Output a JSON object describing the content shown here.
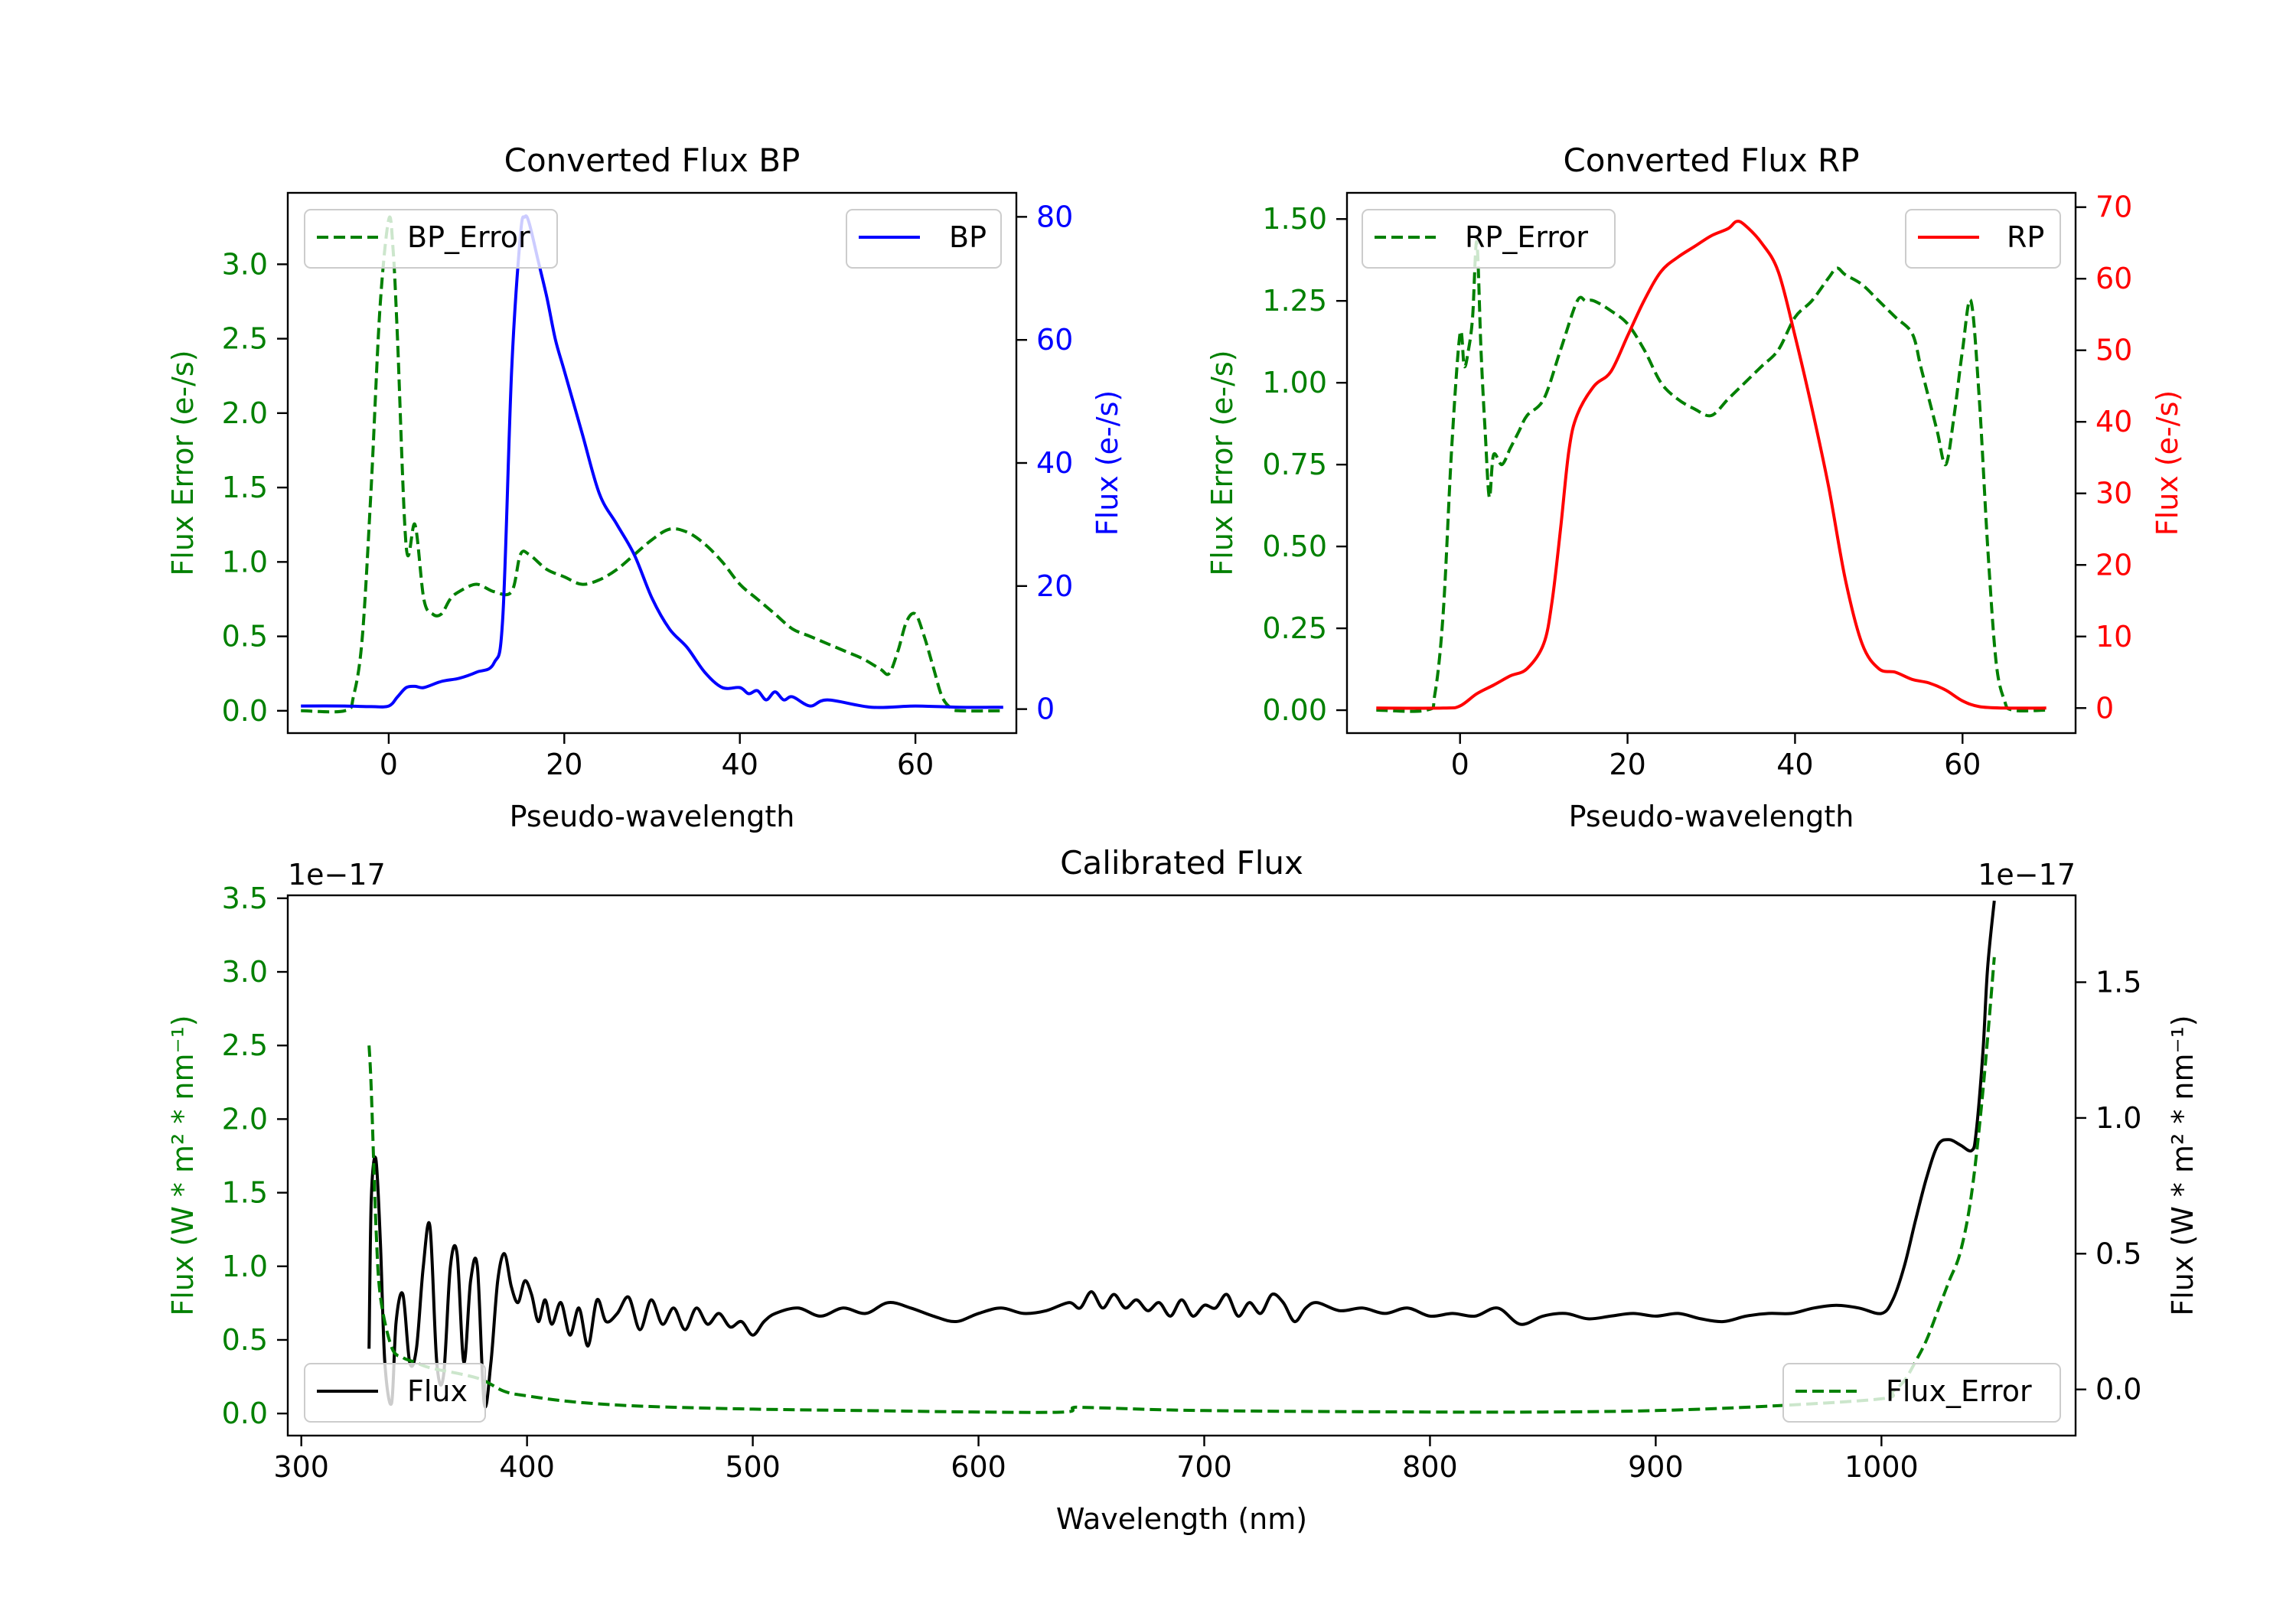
{
  "chart_data": [
    {
      "type": "line",
      "title": "Converted Flux BP",
      "xlabel": "Pseudo-wavelength",
      "ylabel_left": "Flux Error (e-/s)",
      "ylabel_right": "Flux (e-/s)",
      "xlim": [
        -11.5,
        71.5
      ],
      "ylim_left": [
        -0.15,
        3.48
      ],
      "ylim_right": [
        -3.9,
        83.9
      ],
      "xticks": [
        0,
        20,
        40,
        60
      ],
      "yticks_left": [
        0.0,
        0.5,
        1.0,
        1.5,
        2.0,
        2.5,
        3.0
      ],
      "yticks_left_labels": [
        "0.0",
        "0.5",
        "1.0",
        "1.5",
        "2.0",
        "2.5",
        "3.0"
      ],
      "yticks_right": [
        0,
        20,
        40,
        60,
        80
      ],
      "yticks_right_labels": [
        "0",
        "20",
        "40",
        "60",
        "80"
      ],
      "left_axis_color": "#008000",
      "right_axis_color": "#0000ff",
      "series": [
        {
          "name": "BP_Error",
          "axis": "left",
          "color": "#008000",
          "dashed": true,
          "x": [
            -10,
            -5,
            -4,
            -3,
            -2,
            -1,
            0,
            0.5,
            1,
            2,
            3,
            4,
            5,
            6,
            7,
            8,
            10,
            12,
            14,
            15,
            16,
            18,
            20,
            22,
            24,
            26,
            28,
            30,
            32,
            34,
            36,
            38,
            40,
            42,
            44,
            46,
            48,
            50,
            52,
            54,
            56,
            57,
            58,
            59,
            60,
            61,
            62,
            63,
            64,
            65,
            70
          ],
          "values": [
            0,
            0,
            0.1,
            0.5,
            1.5,
            2.7,
            3.3,
            3.1,
            2.5,
            1.1,
            1.25,
            0.75,
            0.65,
            0.65,
            0.75,
            0.8,
            0.85,
            0.8,
            0.8,
            1.05,
            1.05,
            0.95,
            0.9,
            0.85,
            0.88,
            0.95,
            1.05,
            1.15,
            1.22,
            1.2,
            1.12,
            1.0,
            0.85,
            0.75,
            0.65,
            0.55,
            0.5,
            0.45,
            0.4,
            0.35,
            0.28,
            0.25,
            0.4,
            0.6,
            0.65,
            0.5,
            0.3,
            0.1,
            0.02,
            0,
            0
          ]
        },
        {
          "name": "BP",
          "axis": "right",
          "color": "#0000ff",
          "dashed": false,
          "x": [
            -10,
            -5,
            -2,
            0,
            1,
            2,
            3,
            4,
            6,
            8,
            10,
            12,
            13,
            14,
            15,
            15.5,
            16,
            17,
            18,
            19,
            20,
            22,
            24,
            26,
            28,
            30,
            32,
            34,
            36,
            38,
            40,
            41,
            42,
            43,
            44,
            45,
            46,
            48,
            50,
            55,
            60,
            65,
            70
          ],
          "values": [
            0.5,
            0.5,
            0.4,
            0.5,
            2,
            3.5,
            3.7,
            3.5,
            4.5,
            5,
            6,
            7.5,
            15,
            55,
            77,
            80,
            79,
            73,
            67,
            60,
            55,
            45,
            35,
            30,
            25,
            18,
            13,
            10,
            6,
            3.5,
            3.5,
            2.5,
            3,
            1.5,
            2.8,
            1.5,
            2,
            0.5,
            1.5,
            0.3,
            0.5,
            0.3,
            0.3
          ]
        }
      ]
    },
    {
      "type": "line",
      "title": "Converted Flux RP",
      "xlabel": "Pseudo-wavelength",
      "ylabel_left": "Flux Error (e-/s)",
      "ylabel_right": "Flux (e-/s)",
      "xlim": [
        -13.5,
        73.5
      ],
      "ylim_left": [
        -0.07,
        1.58
      ],
      "ylim_right": [
        -3.5,
        72
      ],
      "xticks": [
        0,
        20,
        40,
        60
      ],
      "yticks_left": [
        0.0,
        0.25,
        0.5,
        0.75,
        1.0,
        1.25,
        1.5
      ],
      "yticks_left_labels": [
        "0.00",
        "0.25",
        "0.50",
        "0.75",
        "1.00",
        "1.25",
        "1.50"
      ],
      "yticks_right": [
        0,
        10,
        20,
        30,
        40,
        50,
        60,
        70
      ],
      "yticks_right_labels": [
        "0",
        "10",
        "20",
        "30",
        "40",
        "50",
        "60",
        "70"
      ],
      "left_axis_color": "#008000",
      "right_axis_color": "#ff0000",
      "series": [
        {
          "name": "RP_Error",
          "axis": "left",
          "color": "#008000",
          "dashed": true,
          "x": [
            -10,
            -4,
            -3,
            -2,
            -1,
            0,
            0.5,
            1,
            1.5,
            2,
            2.5,
            3,
            3.5,
            4,
            5,
            6,
            7,
            8,
            10,
            12,
            14,
            15,
            16,
            18,
            20,
            22,
            24,
            26,
            28,
            30,
            32,
            34,
            36,
            38,
            40,
            42,
            44,
            45,
            46,
            48,
            50,
            52,
            54,
            55,
            56,
            57,
            58,
            59,
            60,
            61,
            62,
            63,
            64,
            65,
            66,
            70
          ],
          "values": [
            0,
            0,
            0.05,
            0.3,
            0.8,
            1.15,
            1.05,
            1.1,
            1.2,
            1.43,
            1.1,
            0.85,
            0.65,
            0.78,
            0.75,
            0.8,
            0.85,
            0.9,
            0.95,
            1.1,
            1.25,
            1.25,
            1.25,
            1.22,
            1.18,
            1.1,
            1.0,
            0.95,
            0.92,
            0.9,
            0.95,
            1.0,
            1.05,
            1.1,
            1.2,
            1.25,
            1.32,
            1.35,
            1.33,
            1.3,
            1.25,
            1.2,
            1.15,
            1.05,
            0.95,
            0.85,
            0.75,
            0.9,
            1.1,
            1.25,
            0.95,
            0.5,
            0.15,
            0.03,
            0,
            0
          ]
        },
        {
          "name": "RP",
          "axis": "right",
          "color": "#ff0000",
          "dashed": false,
          "x": [
            -10,
            -2,
            0,
            2,
            4,
            6,
            8,
            10,
            11,
            12,
            13,
            14,
            16,
            18,
            20,
            22,
            24,
            26,
            28,
            30,
            32,
            33,
            34,
            36,
            38,
            40,
            42,
            44,
            46,
            48,
            50,
            52,
            54,
            56,
            58,
            60,
            62,
            65,
            70
          ],
          "values": [
            0,
            0,
            0.3,
            2,
            3.2,
            4.5,
            5.5,
            9,
            15,
            25,
            36,
            41,
            45,
            47,
            52,
            57,
            61,
            63,
            64.5,
            66,
            67,
            68,
            67.5,
            65,
            61,
            52,
            42,
            31,
            18,
            9,
            5.5,
            5,
            4,
            3.5,
            2.5,
            1,
            0.2,
            0,
            0
          ]
        }
      ]
    },
    {
      "type": "line",
      "title": "Calibrated Flux",
      "xlabel": "Wavelength (nm)",
      "ylabel_left": "Flux (W * m² * nm⁻¹)",
      "ylabel_right": "Flux (W * m² * nm⁻¹)",
      "offset_left": "1e−17",
      "offset_right": "1e−17",
      "xlim": [
        294,
        1086
      ],
      "ylim_left": [
        -0.15,
        3.52
      ],
      "ylim_right": [
        -0.17,
        1.82
      ],
      "xticks": [
        300,
        400,
        500,
        600,
        700,
        800,
        900,
        1000
      ],
      "yticks_left": [
        0.0,
        0.5,
        1.0,
        1.5,
        2.0,
        2.5,
        3.0,
        3.5
      ],
      "yticks_left_labels": [
        "0.0",
        "0.5",
        "1.0",
        "1.5",
        "2.0",
        "2.5",
        "3.0",
        "3.5"
      ],
      "yticks_right": [
        0.0,
        0.5,
        1.0,
        1.5
      ],
      "yticks_right_labels": [
        "0.0",
        "0.5",
        "1.0",
        "1.5"
      ],
      "left_axis_color": "#008000",
      "right_axis_color": "#000000",
      "series": [
        {
          "name": "Flux",
          "axis": "right",
          "color": "#000000",
          "dashed": false,
          "x": [
            330,
            331,
            333,
            335,
            337,
            340,
            342,
            345,
            348,
            351,
            354,
            357,
            360,
            363,
            366,
            369,
            372,
            375,
            378,
            381,
            384,
            387,
            390,
            393,
            396,
            399,
            402,
            405,
            408,
            411,
            415,
            419,
            423,
            427,
            431,
            435,
            440,
            445,
            450,
            455,
            460,
            465,
            470,
            475,
            480,
            485,
            490,
            495,
            500,
            505,
            510,
            520,
            530,
            540,
            550,
            560,
            570,
            580,
            590,
            600,
            610,
            620,
            630,
            640,
            645,
            650,
            655,
            660,
            665,
            670,
            675,
            680,
            685,
            690,
            695,
            700,
            705,
            710,
            715,
            720,
            725,
            730,
            735,
            740,
            745,
            750,
            760,
            770,
            780,
            790,
            800,
            810,
            820,
            830,
            840,
            850,
            860,
            870,
            880,
            890,
            900,
            910,
            920,
            930,
            940,
            950,
            960,
            970,
            980,
            990,
            1000,
            1005,
            1010,
            1015,
            1020,
            1025,
            1030,
            1035,
            1040,
            1042,
            1045,
            1047,
            1050
          ],
          "values": [
            0.15,
            0.7,
            0.85,
            0.55,
            0.1,
            -0.05,
            0.25,
            0.35,
            0.1,
            0.15,
            0.45,
            0.6,
            0.1,
            0.05,
            0.45,
            0.5,
            0.1,
            0.4,
            0.45,
            -0.05,
            0.1,
            0.4,
            0.5,
            0.38,
            0.32,
            0.4,
            0.35,
            0.25,
            0.33,
            0.24,
            0.32,
            0.2,
            0.3,
            0.16,
            0.33,
            0.25,
            0.28,
            0.34,
            0.22,
            0.33,
            0.24,
            0.3,
            0.22,
            0.3,
            0.24,
            0.28,
            0.23,
            0.25,
            0.2,
            0.25,
            0.28,
            0.3,
            0.27,
            0.3,
            0.28,
            0.32,
            0.3,
            0.27,
            0.25,
            0.28,
            0.3,
            0.28,
            0.29,
            0.32,
            0.3,
            0.36,
            0.3,
            0.35,
            0.3,
            0.33,
            0.29,
            0.32,
            0.27,
            0.33,
            0.27,
            0.31,
            0.3,
            0.35,
            0.27,
            0.32,
            0.28,
            0.35,
            0.32,
            0.25,
            0.3,
            0.32,
            0.29,
            0.3,
            0.28,
            0.3,
            0.27,
            0.28,
            0.27,
            0.3,
            0.24,
            0.27,
            0.28,
            0.26,
            0.27,
            0.28,
            0.27,
            0.28,
            0.26,
            0.25,
            0.27,
            0.28,
            0.28,
            0.3,
            0.31,
            0.3,
            0.28,
            0.33,
            0.45,
            0.62,
            0.78,
            0.9,
            0.92,
            0.9,
            0.88,
            0.95,
            1.25,
            1.55,
            1.8
          ]
        },
        {
          "name": "Flux_Error",
          "axis": "left",
          "color": "#008000",
          "dashed": true,
          "x": [
            330,
            331,
            333,
            335,
            340,
            345,
            350,
            355,
            360,
            370,
            380,
            390,
            400,
            420,
            450,
            500,
            550,
            600,
            638,
            642,
            650,
            700,
            800,
            850,
            900,
            950,
            1000,
            1005,
            1010,
            1015,
            1020,
            1025,
            1030,
            1035,
            1040,
            1045,
            1050
          ],
          "values": [
            2.5,
            2.2,
            1.3,
            0.8,
            0.45,
            0.38,
            0.35,
            0.32,
            0.3,
            0.27,
            0.23,
            0.15,
            0.12,
            0.08,
            0.05,
            0.03,
            0.02,
            0.01,
            0.01,
            0.04,
            0.04,
            0.02,
            0.01,
            0.01,
            0.02,
            0.05,
            0.1,
            0.15,
            0.22,
            0.35,
            0.5,
            0.7,
            0.9,
            1.1,
            1.5,
            2.2,
            3.1
          ]
        }
      ]
    }
  ]
}
